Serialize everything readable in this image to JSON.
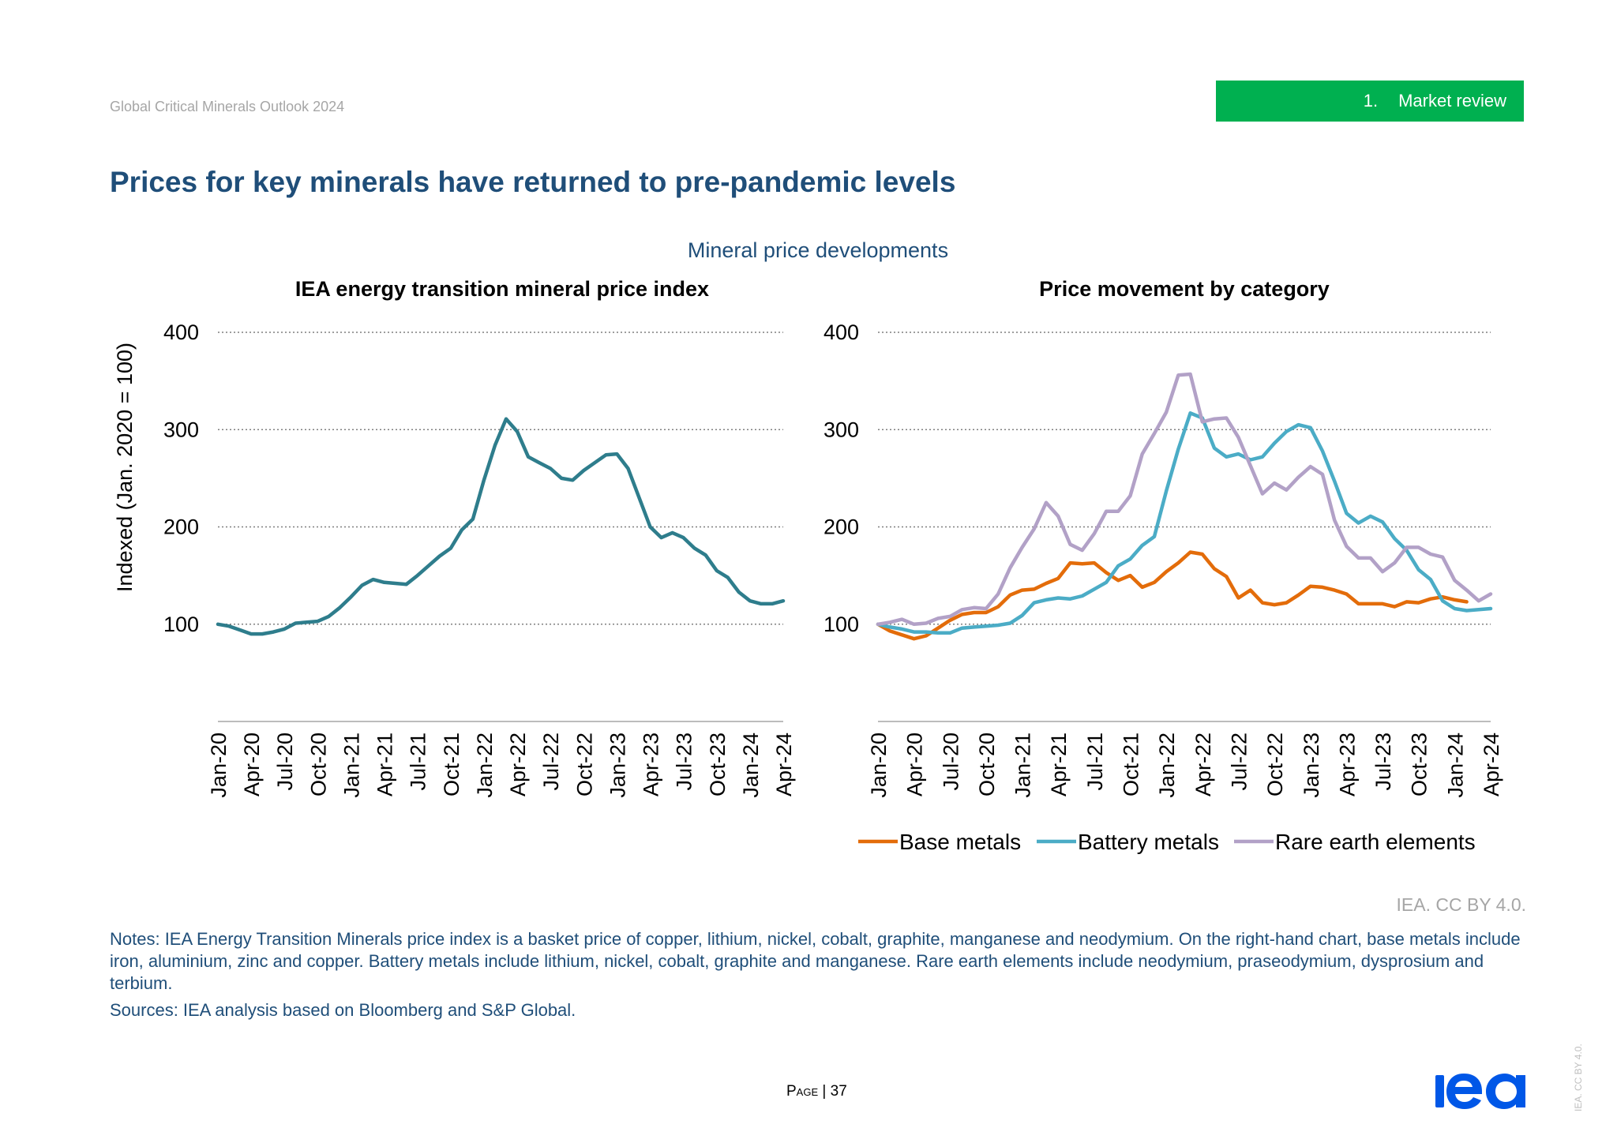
{
  "header": {
    "doc_title": "Global Critical Minerals Outlook 2024",
    "section_number": "1.",
    "section_label": "Market review",
    "section_color": "#00b050"
  },
  "page_title": "Prices for key minerals have returned to pre-pandemic levels",
  "figure_title": "Mineral price developments",
  "chart_data": [
    {
      "type": "line",
      "title": "IEA energy transition mineral price index",
      "ylabel": "Indexed (Jan. 2020 = 100)",
      "xlabel": "",
      "ylim": [
        0,
        400
      ],
      "yticks": [
        100,
        200,
        300,
        400
      ],
      "xticks": [
        "Jan-20",
        "Apr-20",
        "Jul-20",
        "Oct-20",
        "Jan-21",
        "Apr-21",
        "Jul-21",
        "Oct-21",
        "Jan-22",
        "Apr-22",
        "Jul-22",
        "Oct-22",
        "Jan-23",
        "Apr-23",
        "Jul-23",
        "Oct-23",
        "Jan-24",
        "Apr-24"
      ],
      "x_start": "Jan-20",
      "x_frequency": "monthly",
      "grid": "horizontal dotted",
      "series": [
        {
          "name": "IEA energy transition mineral price index",
          "color": "#2e7d8c",
          "values": [
            100,
            98,
            94,
            90,
            90,
            92,
            95,
            101,
            102,
            103,
            108,
            117,
            128,
            140,
            146,
            143,
            142,
            141,
            150,
            160,
            170,
            178,
            197,
            208,
            248,
            284,
            311,
            298,
            272,
            266,
            260,
            250,
            248,
            258,
            266,
            274,
            275,
            260,
            230,
            200,
            189,
            194,
            189,
            178,
            171,
            155,
            148,
            133,
            124,
            121,
            121,
            124
          ]
        }
      ]
    },
    {
      "type": "line",
      "title": "Price movement by category",
      "ylabel": "",
      "xlabel": "",
      "ylim": [
        0,
        400
      ],
      "yticks": [
        100,
        200,
        300,
        400
      ],
      "xticks": [
        "Jan-20",
        "Apr-20",
        "Jul-20",
        "Oct-20",
        "Jan-21",
        "Apr-21",
        "Jul-21",
        "Oct-21",
        "Jan-22",
        "Apr-22",
        "Jul-22",
        "Oct-22",
        "Jan-23",
        "Apr-23",
        "Jul-23",
        "Oct-23",
        "Jan-24",
        "Apr-24"
      ],
      "x_start": "Jan-20",
      "x_frequency": "monthly",
      "grid": "horizontal dotted",
      "legend_position": "bottom",
      "series": [
        {
          "name": "Base metals",
          "color": "#e36c0a",
          "values": [
            100,
            93,
            89,
            85,
            88,
            96,
            104,
            110,
            112,
            112,
            118,
            130,
            135,
            136,
            142,
            147,
            163,
            162,
            163,
            153,
            145,
            150,
            138,
            143,
            154,
            163,
            174,
            172,
            157,
            149,
            127,
            135,
            122,
            120,
            122,
            130,
            139,
            138,
            135,
            131,
            121,
            121,
            121,
            118,
            123,
            122,
            126,
            128,
            125,
            123
          ]
        },
        {
          "name": "Battery metals",
          "color": "#4bacc6",
          "values": [
            100,
            97,
            95,
            92,
            92,
            91,
            91,
            96,
            97,
            98,
            99,
            101,
            109,
            122,
            125,
            127,
            126,
            129,
            136,
            143,
            160,
            167,
            181,
            190,
            237,
            280,
            317,
            312,
            281,
            272,
            275,
            269,
            272,
            286,
            298,
            305,
            302,
            278,
            247,
            214,
            204,
            211,
            205,
            188,
            176,
            156,
            146,
            124,
            116,
            114,
            115,
            116
          ]
        },
        {
          "name": "Rare earth elements",
          "color": "#b2a1c7",
          "values": [
            100,
            102,
            105,
            100,
            101,
            106,
            108,
            115,
            117,
            116,
            131,
            158,
            179,
            198,
            225,
            211,
            182,
            176,
            193,
            216,
            216,
            232,
            275,
            296,
            318,
            356,
            357,
            308,
            311,
            312,
            292,
            263,
            234,
            245,
            238,
            251,
            262,
            254,
            207,
            180,
            168,
            168,
            154,
            163,
            179,
            179,
            172,
            169,
            145,
            135,
            124,
            131
          ]
        }
      ]
    }
  ],
  "axis_font": "",
  "attribution": "IEA. CC BY 4.0.",
  "notes": "Notes: IEA Energy Transition Minerals price index is a basket price of copper, lithium, nickel, cobalt, graphite, manganese and neodymium. On the right-hand chart, base metals include iron, aluminium, zinc and copper. Battery metals include lithium, nickel, cobalt, graphite and manganese. Rare earth elements include neodymium, praseodymium, dysprosium and terbium.",
  "sources": "Sources: IEA analysis based on Bloomberg and S&P Global.",
  "footer": {
    "page_word": "Page",
    "page_sep": " | ",
    "page_number": "37",
    "side_license": "IEA. CC BY 4.0.",
    "logo_text": "iea",
    "logo_color": "#0057e7"
  }
}
